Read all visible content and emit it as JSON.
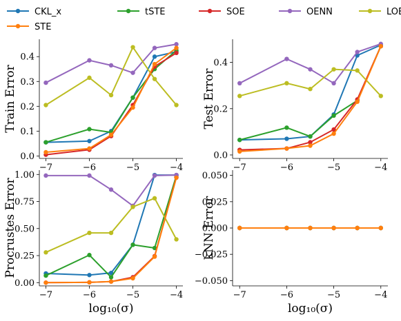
{
  "legend": [
    {
      "name": "CKL_x",
      "color": "#1f77b4"
    },
    {
      "name": "tSTE",
      "color": "#2ca02c"
    },
    {
      "name": "SOE",
      "color": "#d62728"
    },
    {
      "name": "OENN",
      "color": "#9467bd"
    },
    {
      "name": "LOE",
      "color": "#bcbd22"
    },
    {
      "name": "STE",
      "color": "#ff7f0e"
    }
  ],
  "chart_data": [
    {
      "type": "line",
      "ylabel": "Train Error",
      "xlabel": "",
      "x": [
        -7,
        -6,
        -5.5,
        -5,
        -4.5,
        -4
      ],
      "xticks": [
        "−7",
        "−6",
        "−5",
        "−4"
      ],
      "xtick_values": [
        -7,
        -6,
        -5,
        -4
      ],
      "yticks": [
        "0.0",
        "0.1",
        "0.2",
        "0.3",
        "0.4"
      ],
      "ytick_values": [
        0,
        0.1,
        0.2,
        0.3,
        0.4
      ],
      "ylim": [
        -0.01,
        0.47
      ],
      "series": [
        {
          "name": "CKL_x",
          "values": [
            0.055,
            0.06,
            0.1,
            0.235,
            0.4,
            0.42
          ]
        },
        {
          "name": "tSTE",
          "values": [
            0.055,
            0.108,
            0.095,
            0.235,
            0.35,
            0.425
          ]
        },
        {
          "name": "SOE",
          "values": [
            0.005,
            0.025,
            0.08,
            0.205,
            0.36,
            0.415
          ]
        },
        {
          "name": "OENN",
          "values": [
            0.295,
            0.385,
            0.365,
            0.335,
            0.435,
            0.45
          ]
        },
        {
          "name": "LOE",
          "values": [
            0.205,
            0.315,
            0.245,
            0.438,
            0.31,
            0.205
          ]
        },
        {
          "name": "STE",
          "values": [
            0.015,
            0.03,
            0.085,
            0.195,
            0.37,
            0.435
          ]
        }
      ]
    },
    {
      "type": "line",
      "ylabel": "Test Error",
      "xlabel": "",
      "x": [
        -7,
        -6,
        -5.5,
        -5,
        -4.5,
        -4
      ],
      "xticks": [
        "−7",
        "−6",
        "−5",
        "−4"
      ],
      "xtick_values": [
        -7,
        -6,
        -5,
        -4
      ],
      "yticks": [
        "0.0",
        "0.2",
        "0.4"
      ],
      "ytick_values": [
        0,
        0.2,
        0.4
      ],
      "ylim": [
        -0.015,
        0.5
      ],
      "series": [
        {
          "name": "CKL_x",
          "values": [
            0.065,
            0.07,
            0.08,
            0.175,
            0.43,
            0.475
          ]
        },
        {
          "name": "tSTE",
          "values": [
            0.065,
            0.118,
            0.08,
            0.17,
            0.235,
            0.47
          ]
        },
        {
          "name": "SOE",
          "values": [
            0.022,
            0.028,
            0.055,
            0.11,
            0.24,
            0.47
          ]
        },
        {
          "name": "OENN",
          "values": [
            0.31,
            0.415,
            0.37,
            0.31,
            0.445,
            0.48
          ]
        },
        {
          "name": "LOE",
          "values": [
            0.255,
            0.31,
            0.285,
            0.37,
            0.365,
            0.255
          ]
        },
        {
          "name": "STE",
          "values": [
            0.015,
            0.028,
            0.04,
            0.092,
            0.23,
            0.47
          ]
        }
      ]
    },
    {
      "type": "line",
      "ylabel": "Procrustes Error",
      "xlabel": "log₁₀(σ)",
      "x": [
        -7,
        -6,
        -5.5,
        -5,
        -4.5,
        -4
      ],
      "xticks": [
        "−7",
        "−6",
        "−5",
        "−4"
      ],
      "xtick_values": [
        -7,
        -6,
        -5,
        -4
      ],
      "yticks": [
        "0.00",
        "0.25",
        "0.50",
        "0.75",
        "1.00"
      ],
      "ytick_values": [
        0,
        0.25,
        0.5,
        0.75,
        1.0
      ],
      "ylim": [
        -0.03,
        1.04
      ],
      "series": [
        {
          "name": "CKL_x",
          "values": [
            0.085,
            0.07,
            0.09,
            0.35,
            0.995,
            0.995
          ]
        },
        {
          "name": "tSTE",
          "values": [
            0.065,
            0.255,
            0.05,
            0.35,
            0.32,
            0.99
          ]
        },
        {
          "name": "SOE",
          "values": [
            0.0,
            0.003,
            0.01,
            0.05,
            0.245,
            0.975
          ]
        },
        {
          "name": "OENN",
          "values": [
            0.99,
            0.99,
            0.86,
            0.71,
            0.99,
            0.995
          ]
        },
        {
          "name": "LOE",
          "values": [
            0.28,
            0.46,
            0.46,
            0.7,
            0.78,
            0.4
          ]
        },
        {
          "name": "STE",
          "values": [
            0.0,
            0.003,
            0.01,
            0.04,
            0.24,
            0.97
          ]
        }
      ]
    },
    {
      "type": "line",
      "ylabel": "kNN Error",
      "xlabel": "log₁₀(σ)",
      "x": [
        -7,
        -6,
        -5.5,
        -5,
        -4.5,
        -4
      ],
      "xticks": [
        "−7",
        "−6",
        "−5",
        "−4"
      ],
      "xtick_values": [
        -7,
        -6,
        -5,
        -4
      ],
      "yticks": [
        "0.050",
        "0.025",
        "0.000",
        "−0.025",
        "−0.050"
      ],
      "ytick_values": [
        0.05,
        0.025,
        0,
        -0.025,
        -0.05
      ],
      "ylim": [
        -0.055,
        0.055
      ],
      "series": [
        {
          "name": "CKL_x",
          "values": [
            0,
            0,
            0,
            0,
            0,
            0
          ]
        },
        {
          "name": "tSTE",
          "values": [
            0,
            0,
            0,
            0,
            0,
            0
          ]
        },
        {
          "name": "SOE",
          "values": [
            0,
            0,
            0,
            0,
            0,
            0
          ]
        },
        {
          "name": "OENN",
          "values": [
            0,
            0,
            0,
            0,
            0,
            0
          ]
        },
        {
          "name": "LOE",
          "values": [
            0,
            0,
            0,
            0,
            0,
            0
          ]
        },
        {
          "name": "STE",
          "values": [
            0,
            0,
            0,
            0,
            0,
            0
          ]
        }
      ]
    }
  ]
}
